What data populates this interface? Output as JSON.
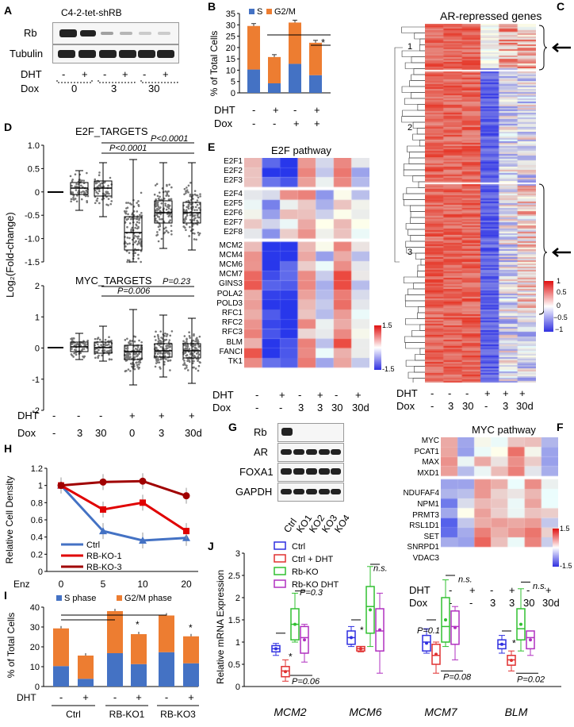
{
  "panels": {
    "A": "A",
    "B": "B",
    "C": "C",
    "D": "D",
    "E": "E",
    "F": "F",
    "G": "G",
    "H": "H",
    "I": "I",
    "J": "J"
  },
  "panelA": {
    "title": "C4-2-tet-shRB",
    "rows": [
      "Rb",
      "Tubulin"
    ],
    "dht_label": "DHT",
    "dox_label": "Dox",
    "dht_signs": [
      "-",
      "+",
      "-",
      "+",
      "-",
      "+"
    ],
    "dox_values": [
      "0",
      "3",
      "30"
    ]
  },
  "panelB": {
    "chart_data": {
      "type": "bar",
      "ylabel": "% of Total Cells",
      "ylim": [
        0,
        35
      ],
      "yticks": [
        "0",
        "5",
        "10",
        "15",
        "20",
        "25",
        "30",
        "35"
      ],
      "legend": [
        "S",
        "G2/M"
      ],
      "dht": [
        "-",
        "+",
        "-",
        "+"
      ],
      "dox": [
        "-",
        "-",
        "+",
        "+"
      ],
      "series": [
        {
          "name": "S",
          "values": [
            10.3,
            4.2,
            12.8,
            7.8
          ]
        },
        {
          "name": "G2/M",
          "values": [
            19.2,
            11.6,
            18.2,
            14.3
          ]
        }
      ],
      "annotation": "*"
    },
    "dht_label": "DHT",
    "dox_label": "Dox"
  },
  "panelC": {
    "title": "AR-repressed genes",
    "clusters": [
      "1",
      "2",
      "3"
    ],
    "legend_ticks": [
      "1",
      "0.5",
      "0",
      "−0.5",
      "−1"
    ],
    "dht_label": "DHT",
    "dox_label": "Dox",
    "dht_signs": [
      "-",
      "-",
      "-",
      "+",
      "+",
      "+"
    ],
    "dox_values": [
      "-",
      "3",
      "30",
      "-",
      "3",
      "30d"
    ]
  },
  "panelD": {
    "ylabel": "Log₂(Fold-change)",
    "top": {
      "title": "E2F_TARGETS",
      "yticks": [
        "1.0",
        "0.5",
        "0",
        "-0.5",
        "-1.0",
        "-1.5"
      ],
      "pvals": [
        "P<0.0001",
        "P<0.0001"
      ]
    },
    "bottom": {
      "title": "MYC_TARGETS",
      "yticks": [
        "2",
        "1",
        "0",
        "-1",
        "-2"
      ],
      "pvals": [
        "P=0.006",
        "P=0.23"
      ]
    },
    "dht_label": "DHT",
    "dox_label": "Dox",
    "dht_signs": [
      "-",
      "-",
      "-",
      "+",
      "+",
      "+"
    ],
    "dox_values": [
      "-",
      "3",
      "30",
      "0",
      "3",
      "30d"
    ]
  },
  "panelE": {
    "title": "E2F pathway",
    "genes_a": [
      "E2F1",
      "E2F2",
      "E2F3"
    ],
    "genes_b": [
      "E2F4",
      "E2F5",
      "E2F6",
      "E2F7",
      "E2F8"
    ],
    "genes_c": [
      "MCM2",
      "MCM4",
      "MCM6",
      "MCM7",
      "GINS3",
      "POLA2",
      "POLD3",
      "RFC1",
      "RFC2",
      "RFC3",
      "BLM",
      "FANCI",
      "TK1"
    ],
    "legend_ticks": [
      "1.5",
      "-1.5"
    ],
    "dht_label": "DHT",
    "dox_label": "Dox",
    "dht_signs": [
      "-",
      "+",
      "-",
      "+",
      "-",
      "+"
    ],
    "dox_values": [
      "-",
      "-",
      "3",
      "3",
      "30",
      "30d"
    ]
  },
  "panelF": {
    "title": "MYC pathway",
    "genes_a": [
      "MYC",
      "PCAT1",
      "MAX",
      "MXD1"
    ],
    "genes_b": [
      "NDUFAF4",
      "NPM1",
      "PRMT3",
      "RSL1D1",
      "SET",
      "SNRPD1",
      "VDAC3"
    ],
    "legend_ticks": [
      "1.5",
      "-1.5"
    ],
    "dht_label": "DHT",
    "dox_label": "Dox",
    "dht_signs": [
      "-",
      "+",
      "-",
      "+",
      "-",
      "+"
    ],
    "dox_values": [
      "-",
      "-",
      "3",
      "3",
      "30",
      "30d"
    ]
  },
  "panelG": {
    "rows": [
      "Rb",
      "AR",
      "FOXA1",
      "GAPDH"
    ],
    "lanes": [
      "Ctrl",
      "KO1",
      "KO2",
      "KO3",
      "KO4"
    ]
  },
  "panelH": {
    "chart_data": {
      "type": "line",
      "ylabel": "Relative Cell Density",
      "xlabel": "Enz",
      "x": [
        "0",
        "5",
        "10",
        "20"
      ],
      "ylim": [
        0,
        1.2
      ],
      "yticks": [
        "0",
        "0.2",
        "0.4",
        "0.6",
        "0.8",
        "1",
        "1.2"
      ],
      "series": [
        {
          "name": "Ctrl",
          "values": [
            1.0,
            0.47,
            0.36,
            0.39
          ],
          "color": "#4472c4"
        },
        {
          "name": "RB-KO-1",
          "values": [
            1.0,
            0.72,
            0.8,
            0.47
          ],
          "color": "#e00000"
        },
        {
          "name": "RB-KO-3",
          "values": [
            1.0,
            1.04,
            1.05,
            0.88
          ],
          "color": "#a00000"
        }
      ]
    }
  },
  "panelI": {
    "chart_data": {
      "type": "bar",
      "ylabel": "% of Total Cells",
      "ylim": [
        0,
        40
      ],
      "yticks": [
        "0",
        "10",
        "20",
        "30",
        "40"
      ],
      "legend": [
        "S phase",
        "G2/M phase"
      ],
      "dht": [
        "-",
        "+",
        "-",
        "+",
        "-",
        "+"
      ],
      "groups": [
        "Ctrl",
        "RB-KO1",
        "RB-KO3"
      ],
      "series": [
        {
          "name": "S phase",
          "values": [
            10.3,
            3.9,
            16.8,
            11.3,
            17.3,
            11.7
          ]
        },
        {
          "name": "G2/M phase",
          "values": [
            19.0,
            11.7,
            21.2,
            15.1,
            18.5,
            13.6
          ]
        }
      ],
      "annotations": [
        "*",
        "*"
      ]
    },
    "dht_label": "DHT"
  },
  "panelJ": {
    "chart_data": {
      "type": "box",
      "ylabel": "Relative mRNA Expression",
      "ylim": [
        0,
        3
      ],
      "yticks": [
        "0",
        "0.5",
        "1",
        "1.5",
        "2",
        "2.5",
        "3"
      ],
      "genes": [
        "MCM2",
        "MCM6",
        "MCM7",
        "BLM"
      ],
      "legend": [
        "Ctrl",
        "Ctrl + DHT",
        "Rb-KO",
        "Rb-KO DHT"
      ],
      "colors": [
        "#2f2fe0",
        "#e03030",
        "#30c030",
        "#b030c0"
      ],
      "annotations": {
        "MCM2": [
          "*",
          "P=0.3",
          "P=0.06"
        ],
        "MCM6": [
          "*",
          "n.s."
        ],
        "MCM7": [
          "P=0.1",
          "n.s.",
          "P=0.08"
        ],
        "BLM": [
          "*",
          "n.s.",
          "P=0.02"
        ]
      }
    }
  }
}
